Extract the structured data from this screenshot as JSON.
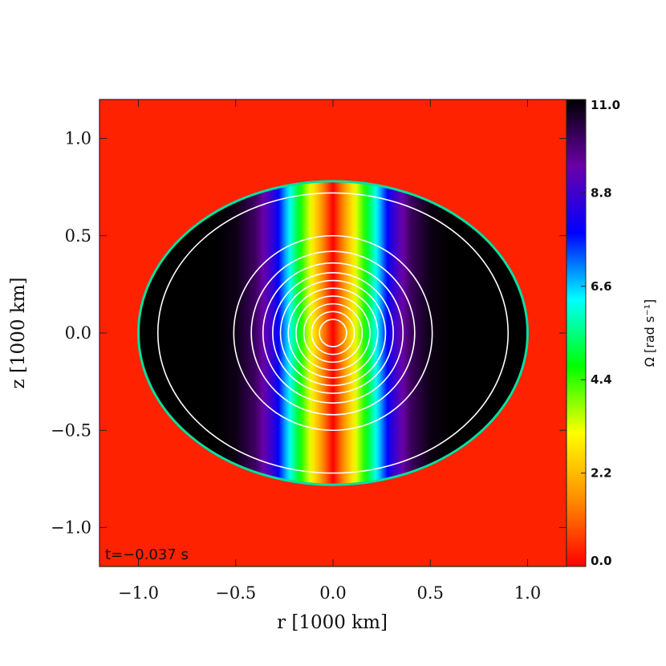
{
  "chart_data": {
    "type": "heatmap",
    "title": "",
    "xlabel": "r [1000 km]",
    "ylabel": "z [1000 km]",
    "xlim": [
      -1.2,
      1.2
    ],
    "ylim": [
      -1.2,
      1.2
    ],
    "xticks": [
      -1.0,
      -0.5,
      0.0,
      0.5,
      1.0
    ],
    "yticks": [
      -1.0,
      -0.5,
      0.0,
      0.5,
      1.0
    ],
    "xtick_labels": [
      "−1.0",
      "−0.5",
      "0.0",
      "0.5",
      "1.0"
    ],
    "ytick_labels": [
      "−1.0",
      "−0.5",
      "0.0",
      "0.5",
      "1.0"
    ],
    "annotation": "t=−0.037 s",
    "colorbar": {
      "label": "Ω [rad s⁻¹]",
      "ticks": [
        0.0,
        2.2,
        4.4,
        6.6,
        8.8,
        11.0
      ],
      "tick_labels": [
        "0.0",
        "2.2",
        "4.4",
        "6.6",
        "8.8",
        "11.0"
      ],
      "range": [
        0.0,
        11.0
      ],
      "colormap": [
        "#ff0000",
        "#ff8c00",
        "#ffff00",
        "#00ff00",
        "#00ffff",
        "#0000ff",
        "#6a00a8",
        "#000000"
      ]
    },
    "field": {
      "background_value": 0.0,
      "outer_boundary": {
        "semi_axis_r": 1.0,
        "semi_axis_z": 0.78
      },
      "omega_profile": {
        "r_abs": [
          0.0,
          0.05,
          0.1,
          0.15,
          0.2,
          0.25,
          0.3,
          0.35,
          0.4,
          0.5,
          0.6,
          1.0
        ],
        "omega": [
          0.0,
          1.5,
          2.8,
          4.2,
          5.6,
          7.0,
          8.4,
          9.3,
          10.1,
          10.8,
          11.0,
          11.0
        ]
      }
    },
    "contours": {
      "color": "#ffffff",
      "ellipses": [
        {
          "a": 0.9,
          "b": 0.72
        },
        {
          "a": 0.51,
          "b": 0.5
        },
        {
          "a": 0.42,
          "b": 0.42
        },
        {
          "a": 0.36,
          "b": 0.36
        },
        {
          "a": 0.31,
          "b": 0.31
        },
        {
          "a": 0.27,
          "b": 0.27
        },
        {
          "a": 0.23,
          "b": 0.23
        },
        {
          "a": 0.19,
          "b": 0.19
        },
        {
          "a": 0.15,
          "b": 0.15
        },
        {
          "a": 0.11,
          "b": 0.11
        },
        {
          "a": 0.07,
          "b": 0.07
        }
      ]
    }
  }
}
